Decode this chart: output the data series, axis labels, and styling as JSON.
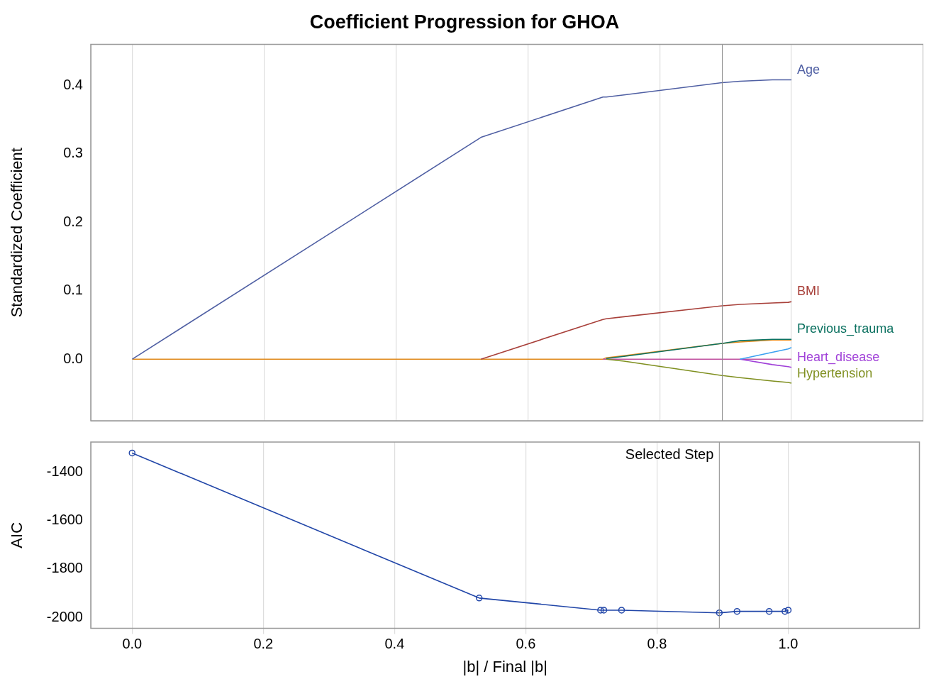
{
  "chart_data": [
    {
      "type": "line",
      "title": "Coefficient Progression for GHOA",
      "ylabel": "Standardized Coefficient",
      "x": [
        0,
        0.529,
        0.714,
        0.719,
        0.746,
        0.895,
        0.922,
        0.971,
        0.995,
        1.0
      ],
      "series": [
        {
          "name": "Age",
          "color": "#4f5fa3",
          "values": [
            0,
            0.324,
            0.383,
            0.383,
            0.386,
            0.404,
            0.406,
            0.408,
            0.408,
            0.408
          ]
        },
        {
          "name": "BMI",
          "color": "#a8403a",
          "values": [
            null,
            0,
            0.058,
            0.059,
            0.062,
            0.078,
            0.08,
            0.082,
            0.083,
            0.084
          ]
        },
        {
          "name": "Previous_trauma",
          "color": "#0b7160",
          "values": [
            null,
            null,
            null,
            0.001,
            0.004,
            0.023,
            0.027,
            0.029,
            0.029,
            0.029
          ]
        },
        {
          "color": "#3aa0f0",
          "values": [
            null,
            null,
            null,
            null,
            null,
            null,
            0,
            0.01,
            0.015,
            0.017
          ]
        },
        {
          "name": "Heart_disease",
          "color": "#a040d8",
          "values": [
            null,
            null,
            null,
            null,
            null,
            null,
            0,
            -0.008,
            -0.011,
            -0.012
          ]
        },
        {
          "name": "Hypertension",
          "color": "#7f8f1f",
          "values": [
            null,
            null,
            null,
            0,
            -0.003,
            -0.024,
            -0.027,
            -0.032,
            -0.034,
            -0.035
          ]
        },
        {
          "color": "#c050a0",
          "values": [
            null,
            null,
            0,
            0,
            0,
            0,
            0,
            0,
            0,
            0
          ]
        },
        {
          "color": "#e08a1c",
          "values": [
            0,
            0,
            0,
            0.002,
            0.005,
            0.023,
            0.025,
            0.028,
            0.028,
            0.028
          ]
        }
      ],
      "xlim": [
        -0.063,
        1.2
      ],
      "xticks": [
        0,
        0.2,
        0.4,
        0.6,
        0.8,
        1
      ],
      "ylim": [
        -0.09,
        0.46
      ],
      "yticks": [
        {
          "value": 0,
          "label": "0.0"
        },
        0.1,
        0.2,
        0.3,
        0.4
      ],
      "tick_labels": "y",
      "grid": "x",
      "legend": false,
      "marker": "none",
      "line_style": "solid",
      "ref_lines": [
        {
          "axis": "x",
          "value": 0.895,
          "color": "#8a8a8a"
        }
      ]
    },
    {
      "type": "line",
      "xlabel": "|b| / Final |b|",
      "ylabel": "AIC",
      "x": [
        0,
        0.529,
        0.714,
        0.719,
        0.746,
        0.895,
        0.922,
        0.971,
        0.995,
        1.0
      ],
      "series": [
        {
          "color": "#2146a8",
          "values": [
            -1322,
            -1920,
            -1970,
            -1970,
            -1970,
            -1981,
            -1975,
            -1975,
            -1975,
            -1970
          ]
        }
      ],
      "xlim": [
        -0.063,
        1.2
      ],
      "xticks": [
        {
          "value": 0,
          "label": "0.0"
        },
        0.2,
        0.4,
        0.6,
        0.8,
        {
          "value": 1,
          "label": "1.0"
        }
      ],
      "ylim": [
        -2045,
        -1277
      ],
      "yticks": [
        -2000,
        -1800,
        -1600,
        -1400
      ],
      "grid": "x",
      "legend": false,
      "marker": "circle",
      "line_style": "solid",
      "ref_lines": [
        {
          "axis": "x",
          "value": 0.895,
          "label": "Selected Step",
          "color": "#8a8a8a"
        }
      ]
    }
  ]
}
